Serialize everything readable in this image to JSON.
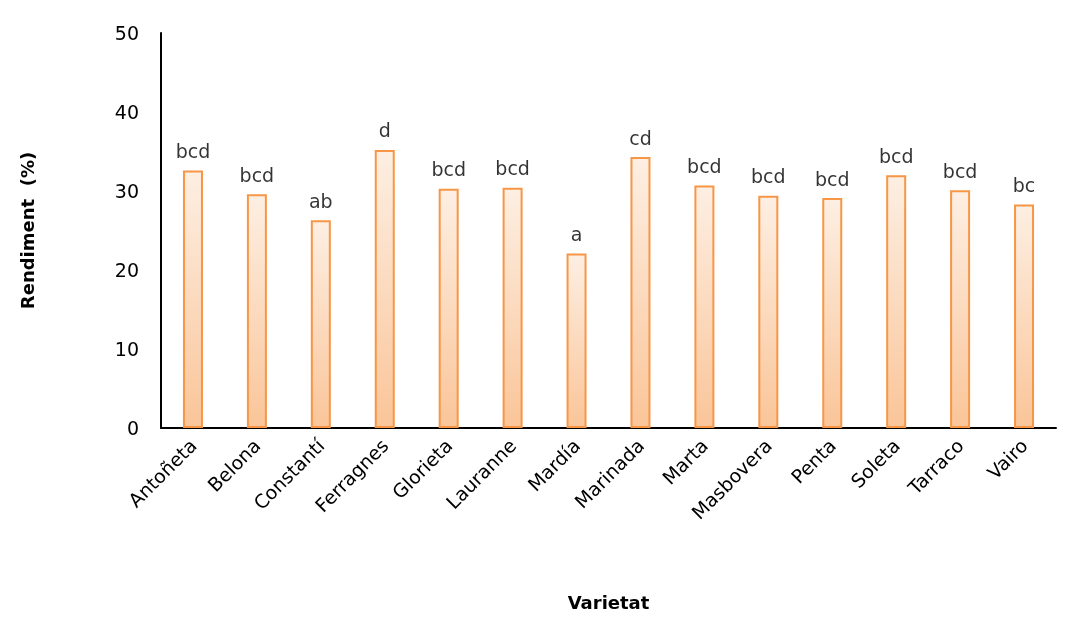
{
  "chart_data": {
    "type": "bar",
    "xlabel": "Varietat",
    "ylabel": "Rendiment  (%)",
    "categories": [
      "Antoñeta",
      "Belona",
      "Constantí",
      "Ferragnes",
      "Glorieta",
      "Lauranne",
      "Mardía",
      "Marinada",
      "Marta",
      "Masbovera",
      "Penta",
      "Soleta",
      "Tarraco",
      "Vairo"
    ],
    "values": [
      32.6,
      29.6,
      26.3,
      35.2,
      30.3,
      30.4,
      22.1,
      34.3,
      30.7,
      29.4,
      29.1,
      32.0,
      30.1,
      28.3
    ],
    "color": "#f79646",
    "ylim": [
      0,
      50
    ],
    "yticks": [
      0,
      10,
      20,
      30,
      40,
      50
    ],
    "grid": false,
    "annotations": [
      {
        "text": "bcd",
        "x": "Antoñeta",
        "y": 32.6
      },
      {
        "text": "bcd",
        "x": "Belona",
        "y": 29.6
      },
      {
        "text": "ab",
        "x": "Constantí",
        "y": 26.3
      },
      {
        "text": "d",
        "x": "Ferragnes",
        "y": 35.2
      },
      {
        "text": "bcd",
        "x": "Glorieta",
        "y": 30.3
      },
      {
        "text": "bcd",
        "x": "Lauranne",
        "y": 30.4
      },
      {
        "text": "a",
        "x": "Mardía",
        "y": 22.1
      },
      {
        "text": "cd",
        "x": "Marinada",
        "y": 34.3
      },
      {
        "text": "bcd",
        "x": "Marta",
        "y": 30.7
      },
      {
        "text": "bcd",
        "x": "Masbovera",
        "y": 29.4
      },
      {
        "text": "bcd",
        "x": "Penta",
        "y": 29.1
      },
      {
        "text": "bcd",
        "x": "Soleta",
        "y": 32.0
      },
      {
        "text": "bcd",
        "x": "Tarraco",
        "y": 30.1
      },
      {
        "text": "bc",
        "x": "Vairo",
        "y": 28.3
      }
    ]
  }
}
